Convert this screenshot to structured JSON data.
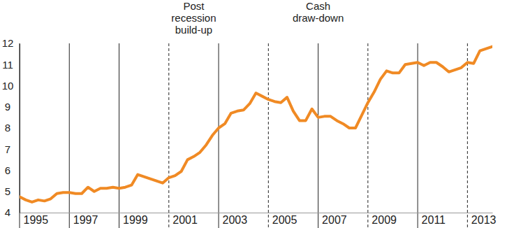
{
  "chart_data": {
    "type": "line",
    "x": [
      1995,
      1995.25,
      1995.5,
      1995.75,
      1996,
      1996.25,
      1996.5,
      1996.75,
      1997,
      1997.25,
      1997.5,
      1997.75,
      1998,
      1998.25,
      1998.5,
      1998.75,
      1999,
      1999.25,
      1999.5,
      1999.75,
      2000,
      2000.25,
      2000.5,
      2000.75,
      2001,
      2001.25,
      2001.5,
      2001.75,
      2002,
      2002.25,
      2002.5,
      2002.75,
      2003,
      2003.25,
      2003.5,
      2003.75,
      2004,
      2004.25,
      2004.5,
      2004.75,
      2005,
      2005.25,
      2005.5,
      2005.75,
      2006,
      2006.25,
      2006.5,
      2006.75,
      2007,
      2007.25,
      2007.5,
      2007.75,
      2008,
      2008.25,
      2008.5,
      2008.75,
      2009,
      2009.25,
      2009.5,
      2009.75,
      2010,
      2010.25,
      2010.5,
      2010.75,
      2011,
      2011.25,
      2011.5,
      2011.75,
      2012,
      2012.25,
      2012.5,
      2012.75,
      2013,
      2013.25,
      2013.5,
      2013.75,
      2014
    ],
    "series": [
      {
        "color": "#f08a24",
        "values": [
          4.75,
          4.6,
          4.5,
          4.6,
          4.55,
          4.65,
          4.9,
          4.95,
          4.95,
          4.9,
          4.9,
          5.2,
          5.0,
          5.15,
          5.15,
          5.2,
          5.15,
          5.2,
          5.3,
          5.8,
          5.7,
          5.6,
          5.5,
          5.4,
          5.65,
          5.75,
          5.95,
          6.5,
          6.65,
          6.85,
          7.2,
          7.65,
          8.0,
          8.2,
          8.7,
          8.8,
          8.85,
          9.15,
          9.65,
          9.5,
          9.35,
          9.25,
          9.2,
          9.45,
          8.8,
          8.35,
          8.35,
          8.9,
          8.5,
          8.55,
          8.55,
          8.35,
          8.2,
          8.0,
          8.0,
          8.6,
          9.2,
          9.7,
          10.3,
          10.7,
          10.6,
          10.6,
          11.0,
          11.05,
          11.1,
          10.95,
          11.1,
          11.1,
          10.9,
          10.65,
          10.75,
          10.85,
          11.1,
          11.05,
          11.65,
          11.75,
          11.85
        ]
      }
    ],
    "xlim": [
      1995,
      2014
    ],
    "xticks": [
      1995,
      1997,
      1999,
      2001,
      2003,
      2005,
      2007,
      2009,
      2011,
      2013
    ],
    "ylim": [
      4,
      12
    ],
    "yticks": [
      4,
      5,
      6,
      7,
      8,
      9,
      10,
      11,
      12
    ],
    "grid": true,
    "annotations": [
      {
        "lines": [
          "Post",
          "recession",
          "build-up"
        ],
        "x": 2002
      },
      {
        "lines": [
          "Cash",
          "draw-down"
        ],
        "x": 2007
      }
    ]
  }
}
